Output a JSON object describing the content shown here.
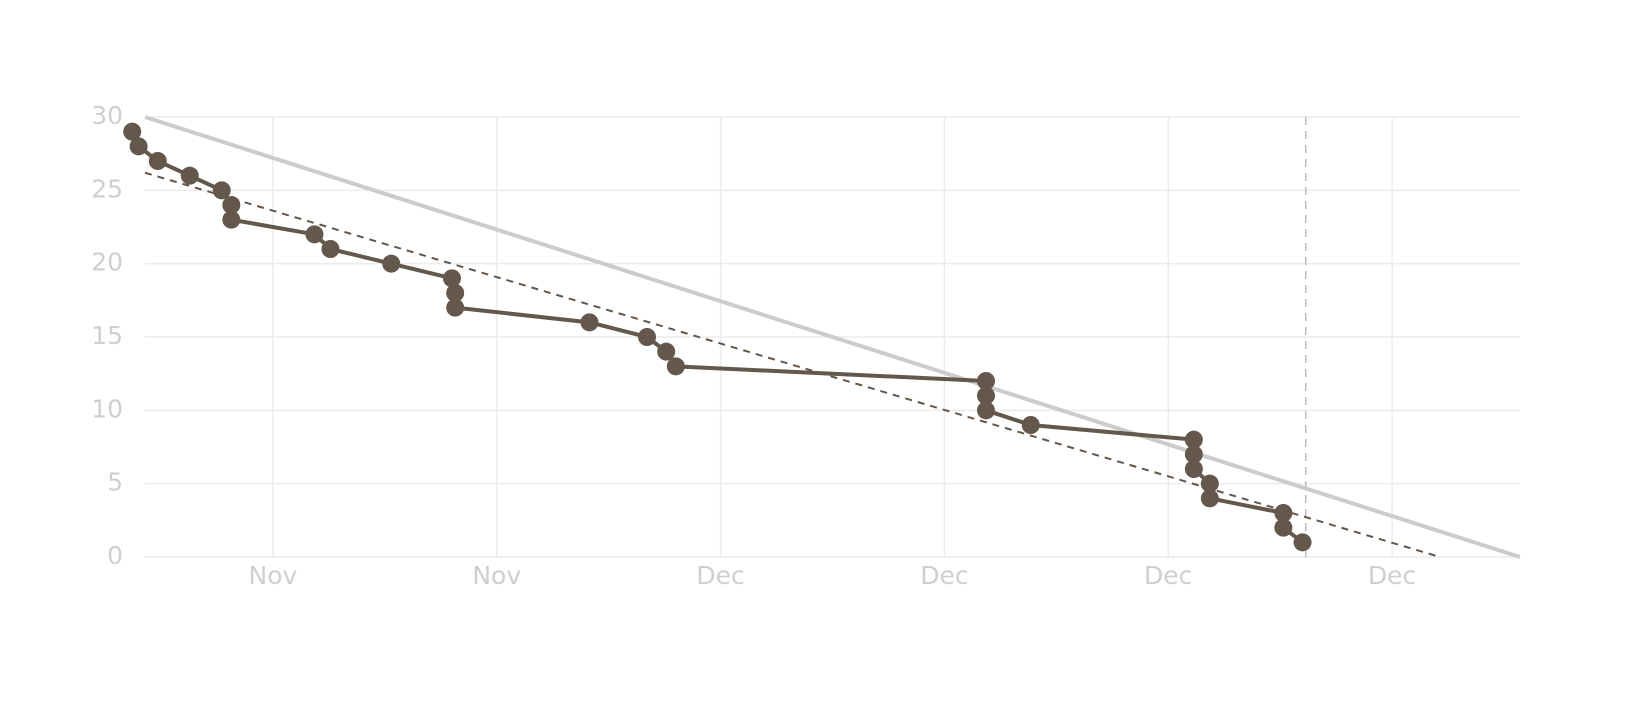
{
  "chart_data": {
    "type": "line",
    "xlim": [
      0,
      43
    ],
    "xticks": [
      {
        "value": 4,
        "label": "Nov"
      },
      {
        "value": 11,
        "label": "Nov"
      },
      {
        "value": 18,
        "label": "Dec"
      },
      {
        "value": 25,
        "label": "Dec"
      },
      {
        "value": 32,
        "label": "Dec"
      },
      {
        "value": 39,
        "label": "Dec"
      }
    ],
    "ylim": [
      0,
      30
    ],
    "yticks": [
      0,
      5,
      10,
      15,
      20,
      25,
      30
    ],
    "grid": true,
    "marker_x": 36.3,
    "series": [
      {
        "color": "#cccccc",
        "width": 4,
        "x": [
          0,
          43
        ],
        "values": [
          30,
          0
        ]
      },
      {
        "color": "#64574b",
        "width": 2,
        "dashed": true,
        "x": [
          0,
          40.5
        ],
        "values": [
          26.2,
          0
        ]
      },
      {
        "color": "#64574b",
        "width": 4,
        "markers": true,
        "x": [
          -0.4,
          -0.2,
          0.4,
          1.4,
          2.4,
          2.7,
          2.7,
          5.3,
          5.8,
          7.7,
          9.6,
          9.7,
          9.7,
          13.9,
          15.7,
          16.3,
          16.6,
          26.3,
          26.3,
          26.3,
          27.7,
          32.8,
          32.8,
          32.8,
          33.3,
          33.3,
          35.6,
          35.6,
          36.2
        ],
        "values": [
          29,
          28,
          27,
          26,
          25,
          24,
          23,
          22,
          21,
          20,
          19,
          18,
          17,
          16,
          15,
          14,
          13,
          12,
          11,
          10,
          9,
          8,
          7,
          6,
          5,
          4,
          3,
          2,
          1
        ]
      }
    ]
  }
}
